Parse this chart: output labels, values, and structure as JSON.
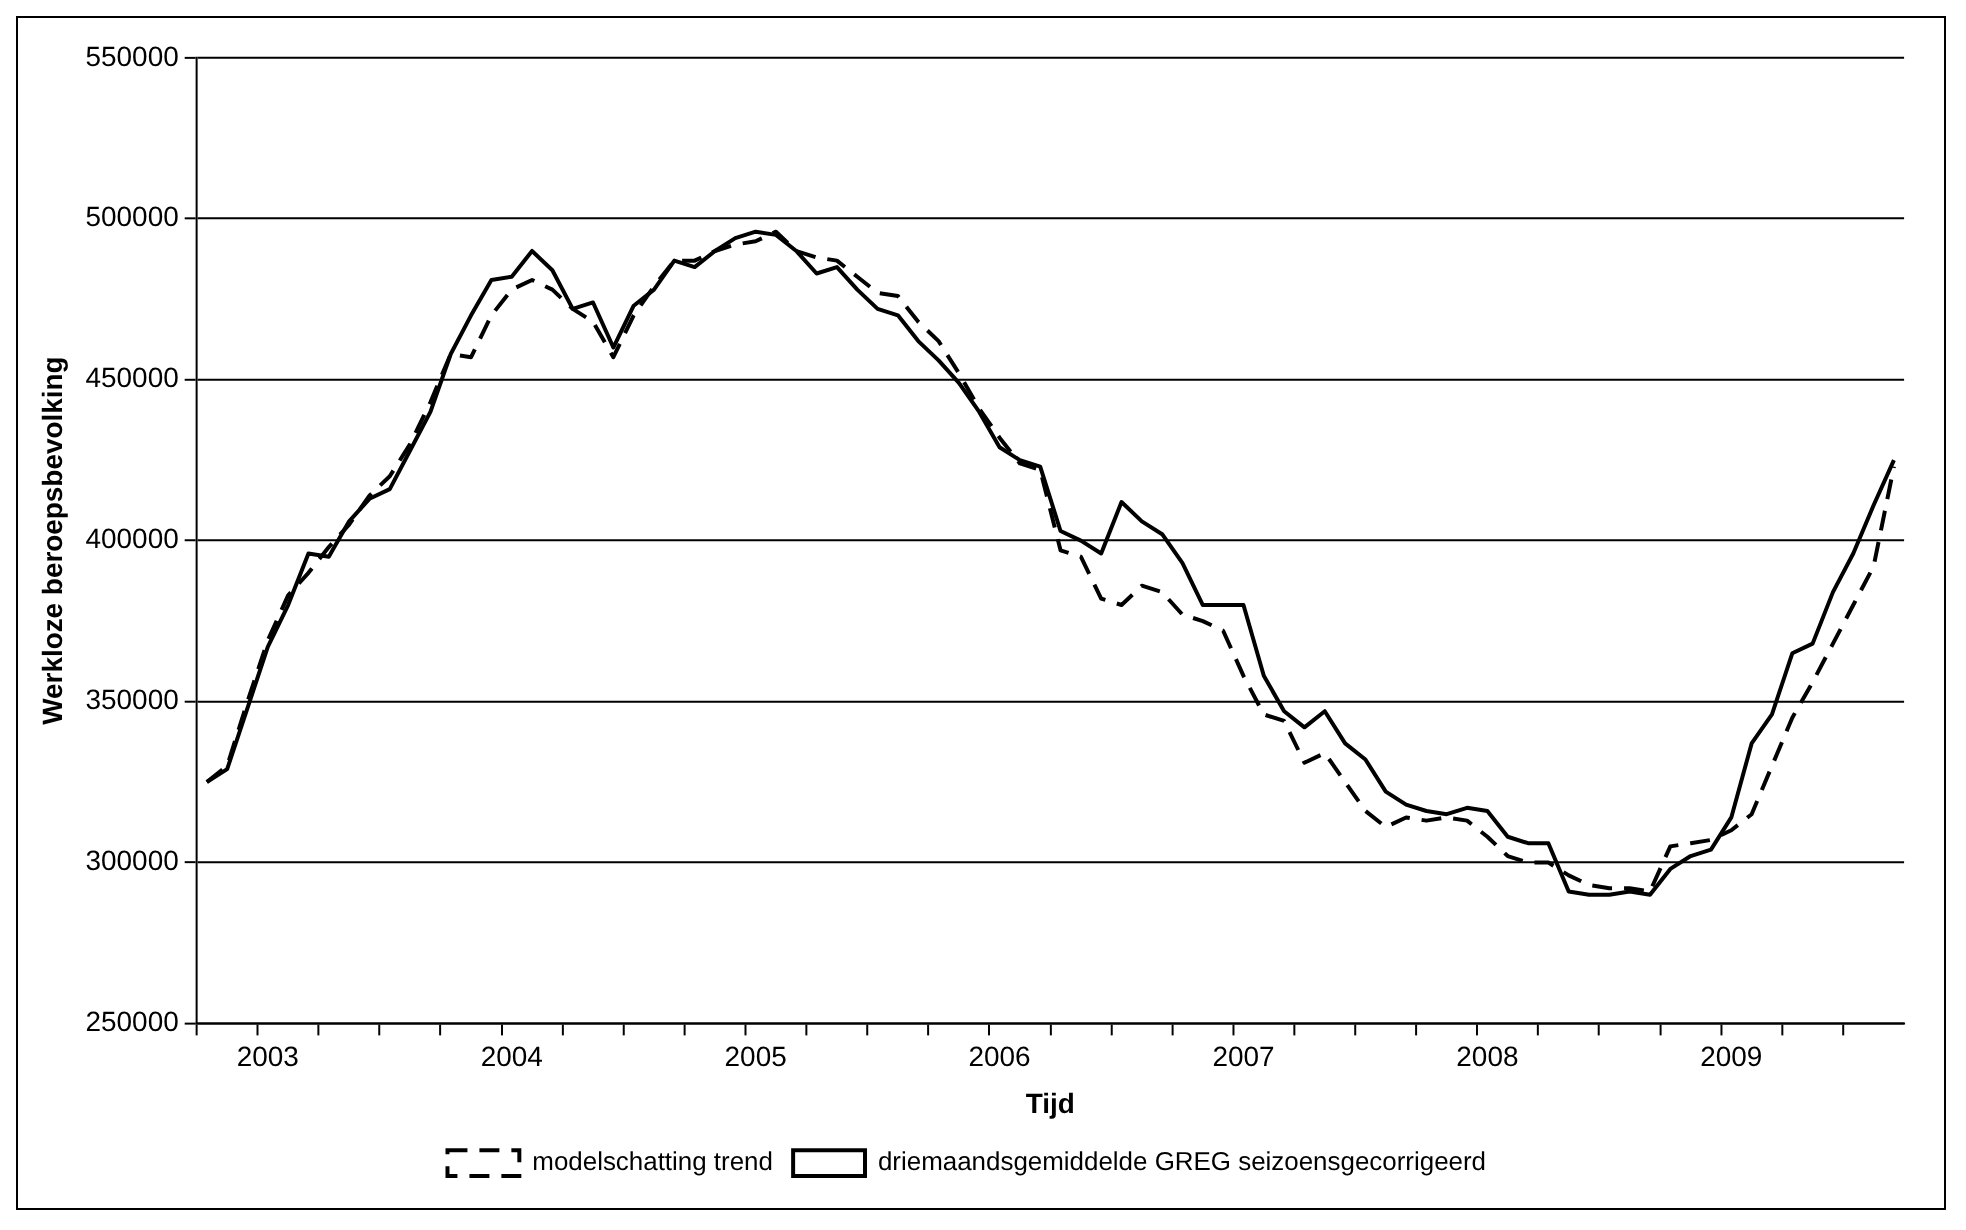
{
  "chart_data": {
    "type": "line",
    "xlabel": "Tijd",
    "ylabel": "Werkloze beroepsbevolking",
    "categories": [
      null,
      null,
      null,
      "2003",
      null,
      null,
      null,
      null,
      null,
      null,
      null,
      null,
      null,
      null,
      null,
      "2004",
      null,
      null,
      null,
      null,
      null,
      null,
      null,
      null,
      null,
      null,
      null,
      "2005",
      null,
      null,
      null,
      null,
      null,
      null,
      null,
      null,
      null,
      null,
      null,
      "2006",
      null,
      null,
      null,
      null,
      null,
      null,
      null,
      null,
      null,
      null,
      null,
      "2007",
      null,
      null,
      null,
      null,
      null,
      null,
      null,
      null,
      null,
      null,
      null,
      "2008",
      null,
      null,
      null,
      null,
      null,
      null,
      null,
      null,
      null,
      null,
      null,
      "2009",
      null,
      null,
      null,
      null,
      null,
      null,
      null,
      null
    ],
    "series": [
      {
        "name": "modelschatting trend",
        "color": "#000000",
        "line_style": "dashed",
        "values": [
          325000,
          330000,
          350000,
          369000,
          383000,
          390000,
          398000,
          405000,
          414000,
          420000,
          430000,
          443000,
          458000,
          457000,
          470000,
          478000,
          481000,
          478000,
          472000,
          468000,
          457000,
          470000,
          479000,
          487000,
          487000,
          490000,
          492000,
          493000,
          496000,
          490000,
          488000,
          487000,
          482000,
          477000,
          476000,
          468000,
          462000,
          452000,
          441000,
          432000,
          424000,
          422000,
          397000,
          395000,
          382000,
          380000,
          386000,
          384000,
          377000,
          375000,
          372000,
          358000,
          346000,
          344000,
          331000,
          334000,
          325000,
          316000,
          311000,
          314000,
          313000,
          314000,
          313000,
          308000,
          302000,
          300000,
          300000,
          296000,
          293000,
          292000,
          292000,
          291000,
          305000,
          306000,
          307000,
          310000,
          315000,
          330000,
          345000,
          356000,
          368000,
          380000,
          392000,
          423000
        ]
      },
      {
        "name": "driemaandsgemiddelde GREG seizoensgecorrigeerd",
        "color": "#000000",
        "line_style": "solid",
        "values": [
          325000,
          329000,
          348000,
          367000,
          380000,
          396000,
          395000,
          406000,
          413000,
          416000,
          428000,
          440000,
          458000,
          470000,
          481000,
          482000,
          490000,
          484000,
          472000,
          474000,
          460000,
          473000,
          478000,
          487000,
          485000,
          490000,
          494000,
          496000,
          495000,
          490000,
          483000,
          485000,
          478000,
          472000,
          470000,
          462000,
          456000,
          449000,
          440000,
          429000,
          425000,
          423000,
          403000,
          400000,
          396000,
          412000,
          406000,
          402000,
          393000,
          380000,
          380000,
          380000,
          358000,
          347000,
          342000,
          347000,
          337000,
          332000,
          322000,
          318000,
          316000,
          315000,
          317000,
          316000,
          308000,
          306000,
          306000,
          291000,
          290000,
          290000,
          291000,
          290000,
          298000,
          302000,
          304000,
          314000,
          337000,
          346000,
          365000,
          368000,
          384000,
          396000,
          411000,
          425000
        ]
      }
    ],
    "ylim": [
      250000,
      550000
    ],
    "yticks": [
      250000,
      300000,
      350000,
      400000,
      450000,
      500000,
      550000
    ],
    "grid": "y",
    "legend": "bottom",
    "marker": "none"
  }
}
